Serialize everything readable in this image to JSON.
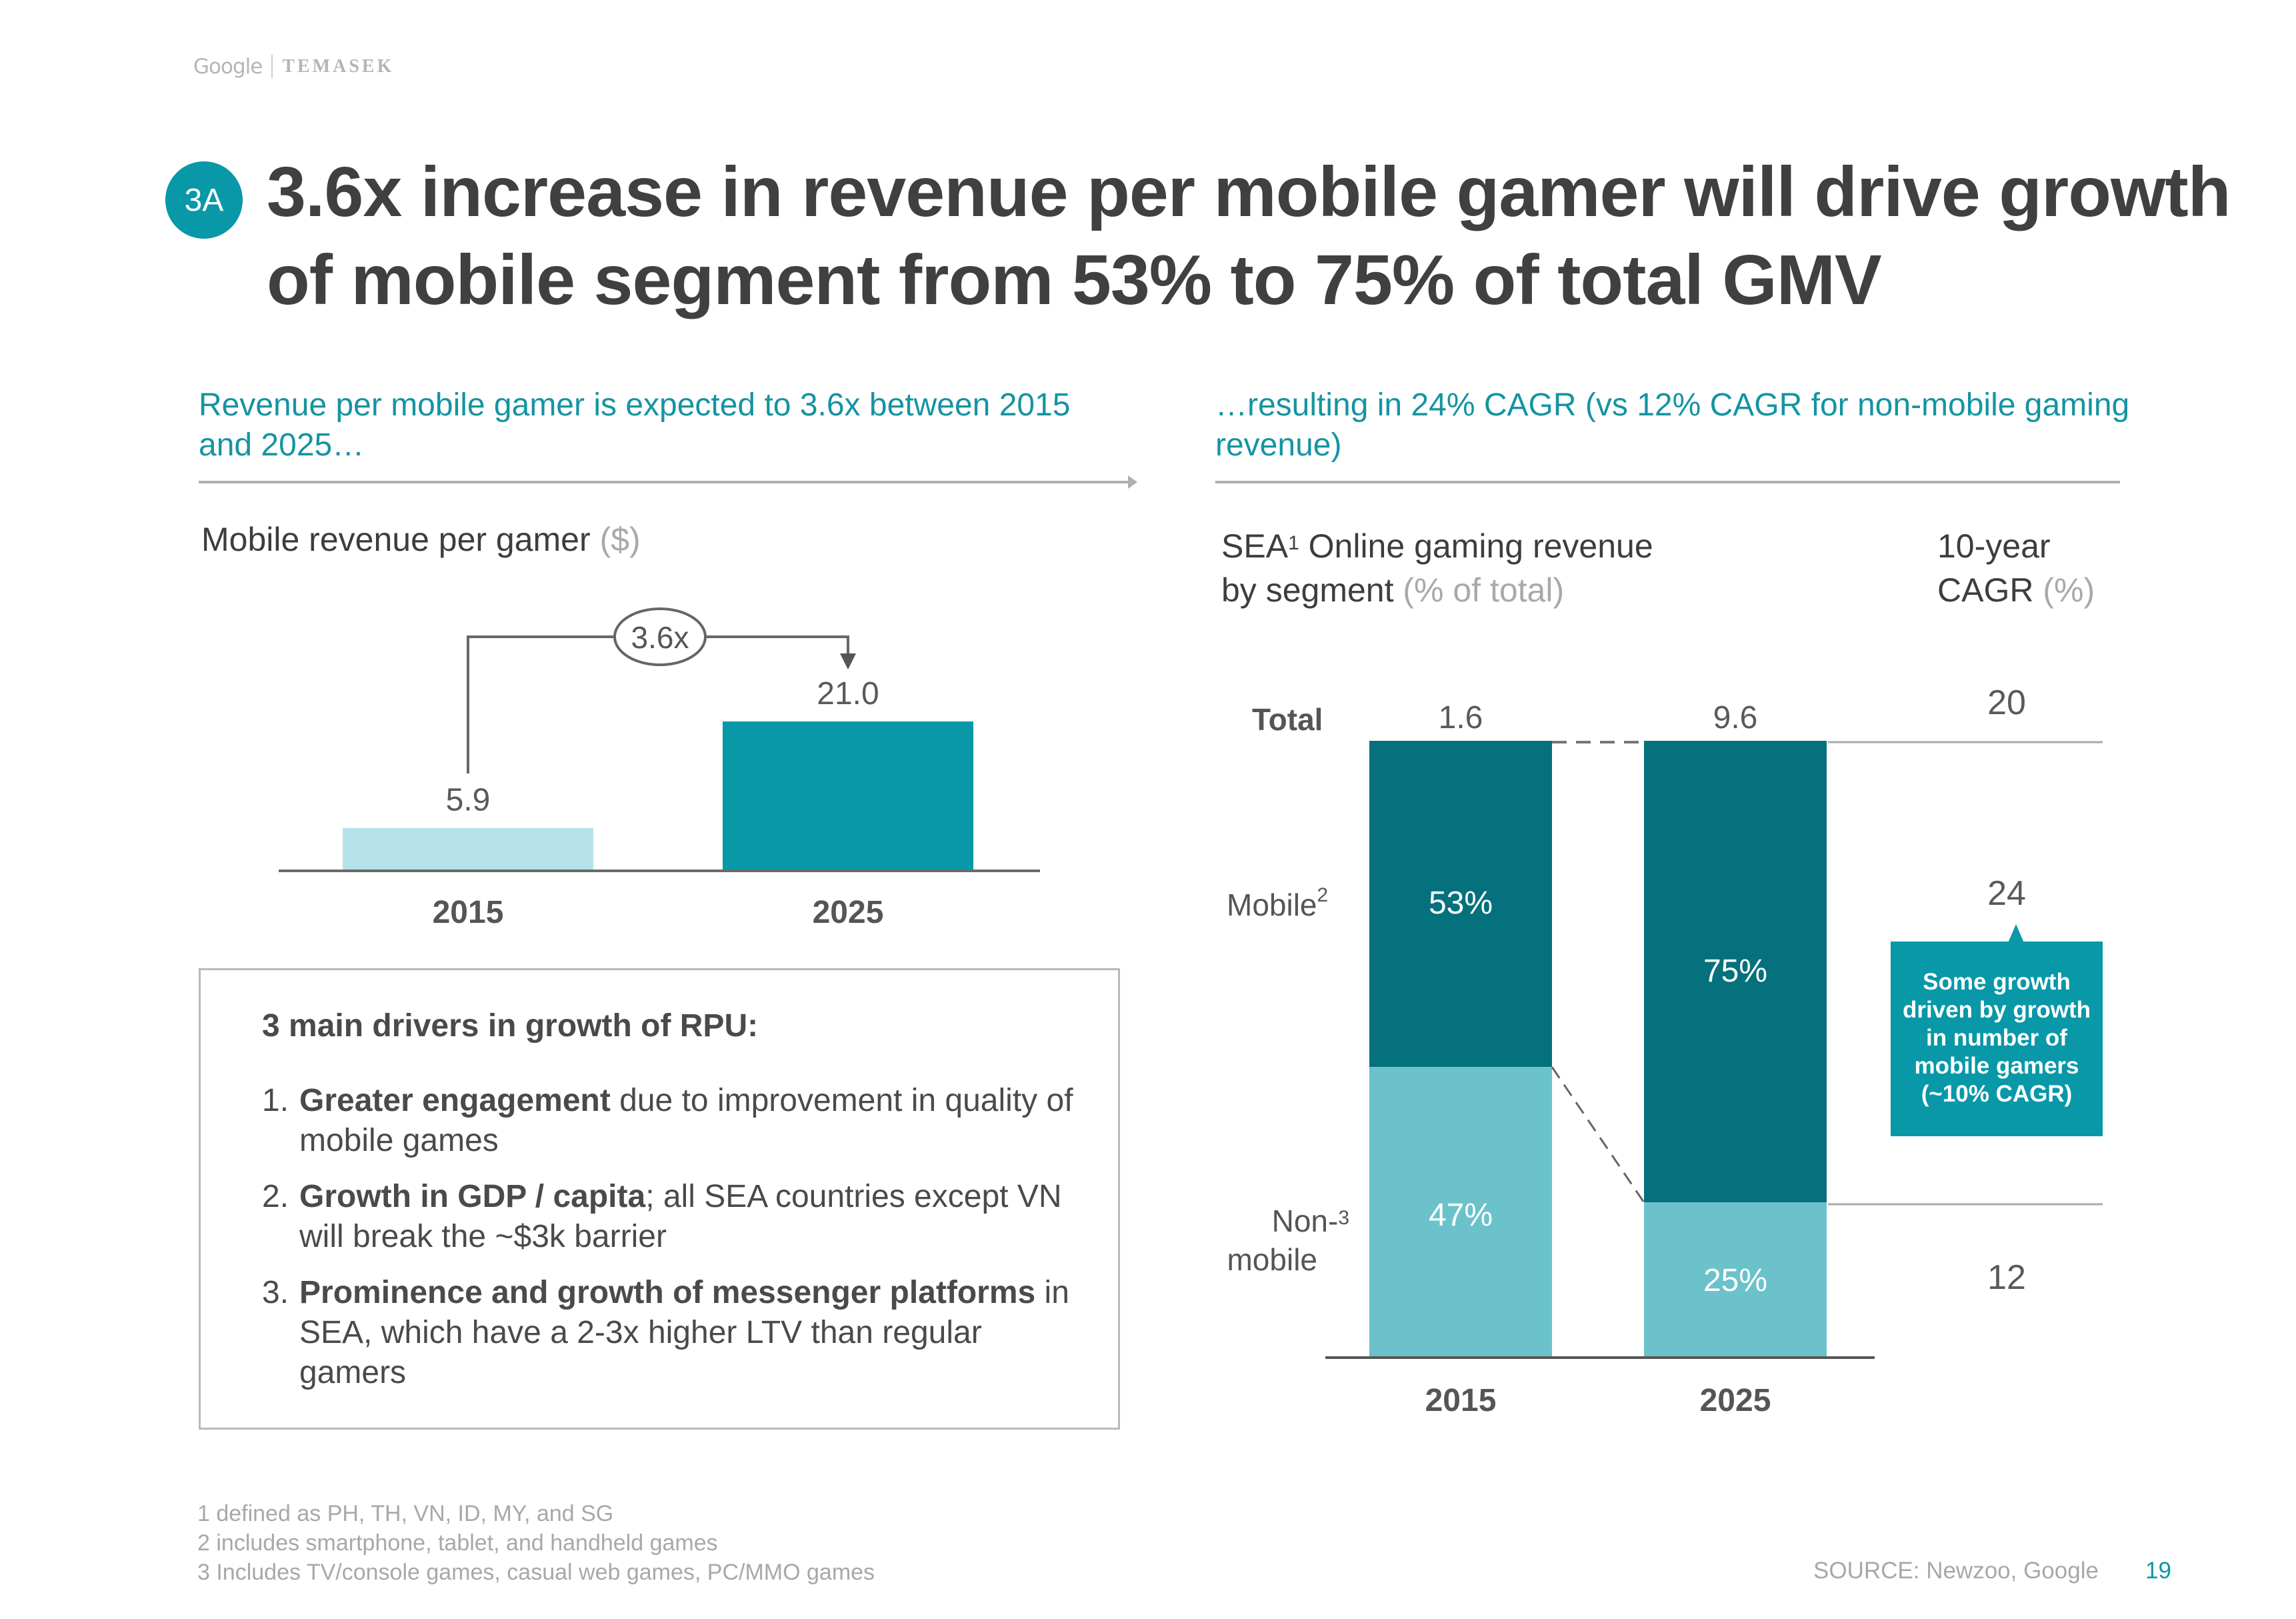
{
  "header": {
    "logo_left": "Google",
    "logo_right": "TEMASEK",
    "section_badge": "3A",
    "title": "3.6x increase in revenue per mobile gamer will drive growth of mobile segment from 53% to 75% of total GMV"
  },
  "left_panel": {
    "subheading": "Revenue per mobile gamer is expected to 3.6x between 2015 and 2025…",
    "chart_title": "Mobile revenue per gamer",
    "chart_unit": "($)",
    "multiplier_label": "3.6x",
    "drivers": {
      "heading": "3 main drivers in growth of RPU:",
      "items": [
        {
          "num": "1.",
          "bold": "Greater engagement",
          "rest": " due to improvement in quality of mobile games"
        },
        {
          "num": "2.",
          "bold": "Growth in GDP / capita",
          "rest": "; all SEA countries except VN will break the ~$3k barrier"
        },
        {
          "num": "3.",
          "bold": "Prominence and growth of messenger platforms",
          "rest": " in SEA, which have a 2-3x higher LTV than regular gamers"
        }
      ]
    }
  },
  "right_panel": {
    "subheading": "…resulting in 24% CAGR (vs 12% CAGR for non-mobile gaming revenue)",
    "chart_title_a": "SEA",
    "chart_title_sup": "1",
    "chart_title_b": " Online gaming revenue",
    "chart_title_c": "by segment ",
    "chart_unit": "(% of total)",
    "cagr_title_a": "10-year",
    "cagr_title_b": "CAGR ",
    "cagr_unit": "(%)",
    "row_labels": {
      "total": "Total",
      "mobile": "Mobile",
      "mobile_sup": "2",
      "nonmobile_a": "Non-",
      "nonmobile_sup": "3",
      "nonmobile_b": "mobile"
    },
    "callout": "Some growth driven by growth in number of mobile gamers (~10% CAGR)"
  },
  "chart_data": [
    {
      "type": "bar",
      "title": "Mobile revenue per gamer ($)",
      "categories": [
        "2015",
        "2025"
      ],
      "values": [
        5.9,
        21.0
      ],
      "value_labels": [
        "5.9",
        "21.0"
      ],
      "colors": [
        "#b5e2ea",
        "#0898a8"
      ],
      "annotation": "3.6x",
      "xlabel": "",
      "ylabel": "",
      "ylim": [
        0,
        25
      ],
      "grid": false
    },
    {
      "type": "bar",
      "stacked": true,
      "percent": true,
      "title": "SEA Online gaming revenue by segment (% of total)",
      "categories": [
        "2015",
        "2025"
      ],
      "totals": [
        1.6,
        9.6
      ],
      "total_labels": [
        "1.6",
        "9.6"
      ],
      "series": [
        {
          "name": "Mobile",
          "values": [
            53,
            75
          ],
          "labels": [
            "53%",
            "75%"
          ],
          "color": "#04717c"
        },
        {
          "name": "Non-mobile",
          "values": [
            47,
            25
          ],
          "labels": [
            "47%",
            "25%"
          ],
          "color": "#6bc2cb"
        }
      ],
      "cagr": {
        "title": "10-year CAGR (%)",
        "Total": "20",
        "Mobile": "24",
        "Non-mobile": "12"
      },
      "ylim": [
        0,
        100
      ],
      "grid": false
    }
  ],
  "footnotes": [
    "1 defined as PH, TH, VN, ID, MY, and SG",
    "2 includes smartphone, tablet, and handheld games",
    "3 Includes TV/console games, casual web games, PC/MMO games"
  ],
  "footer": {
    "source": "SOURCE: Newzoo, Google",
    "page_number": "19"
  }
}
